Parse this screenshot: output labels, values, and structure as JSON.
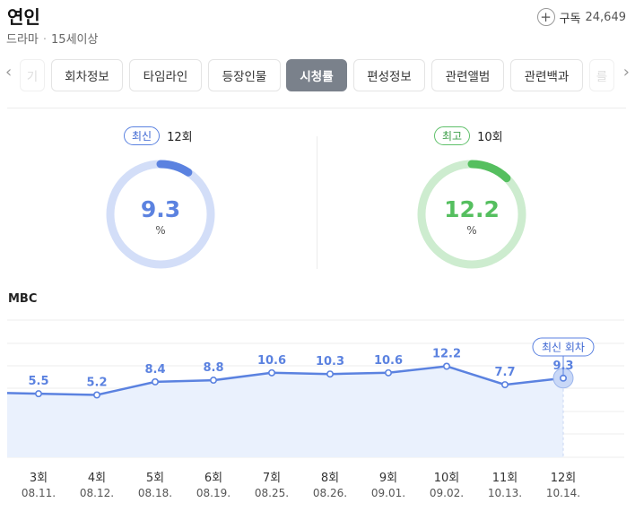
{
  "header": {
    "title": "연인",
    "genre": "드라마",
    "separator": "·",
    "rating": "15세이상",
    "subscribe_label": "구독",
    "subscribe_count": "24,649",
    "subscribe_icon": "plus-circle-icon"
  },
  "tabs": [
    {
      "label": "기",
      "faded": true
    },
    {
      "label": "회차정보"
    },
    {
      "label": "타임라인"
    },
    {
      "label": "등장인물"
    },
    {
      "label": "시청률",
      "active": true
    },
    {
      "label": "편성정보"
    },
    {
      "label": "관련앨범"
    },
    {
      "label": "관련백과"
    },
    {
      "label": "를",
      "faded": true
    }
  ],
  "latest": {
    "badge": "최신",
    "episode": "12회",
    "value": "9.3",
    "unit": "%",
    "color": "#5b82e0",
    "track": "#d3def8",
    "fraction": 0.093
  },
  "best": {
    "badge": "최고",
    "episode": "10회",
    "value": "12.2",
    "unit": "%",
    "color": "#55bf5f",
    "track": "#cdeccf",
    "fraction": 0.122
  },
  "broadcaster": "MBC",
  "chart_data": {
    "type": "area",
    "categories": [
      "3회",
      "4회",
      "5회",
      "6회",
      "7회",
      "8회",
      "9회",
      "10회",
      "11회",
      "12회"
    ],
    "dates": [
      "08.11.",
      "08.12.",
      "08.18.",
      "08.19.",
      "08.25.",
      "08.26.",
      "09.01.",
      "09.02.",
      "10.13.",
      "10.14."
    ],
    "values": [
      5.5,
      5.2,
      8.4,
      8.8,
      10.6,
      10.3,
      10.6,
      12.2,
      7.7,
      9.3
    ],
    "ylim": [
      -10,
      25
    ],
    "grid": true,
    "annotation": "최신 회차",
    "line_color": "#5b82e0",
    "fill_color": "#eaf1fd"
  }
}
